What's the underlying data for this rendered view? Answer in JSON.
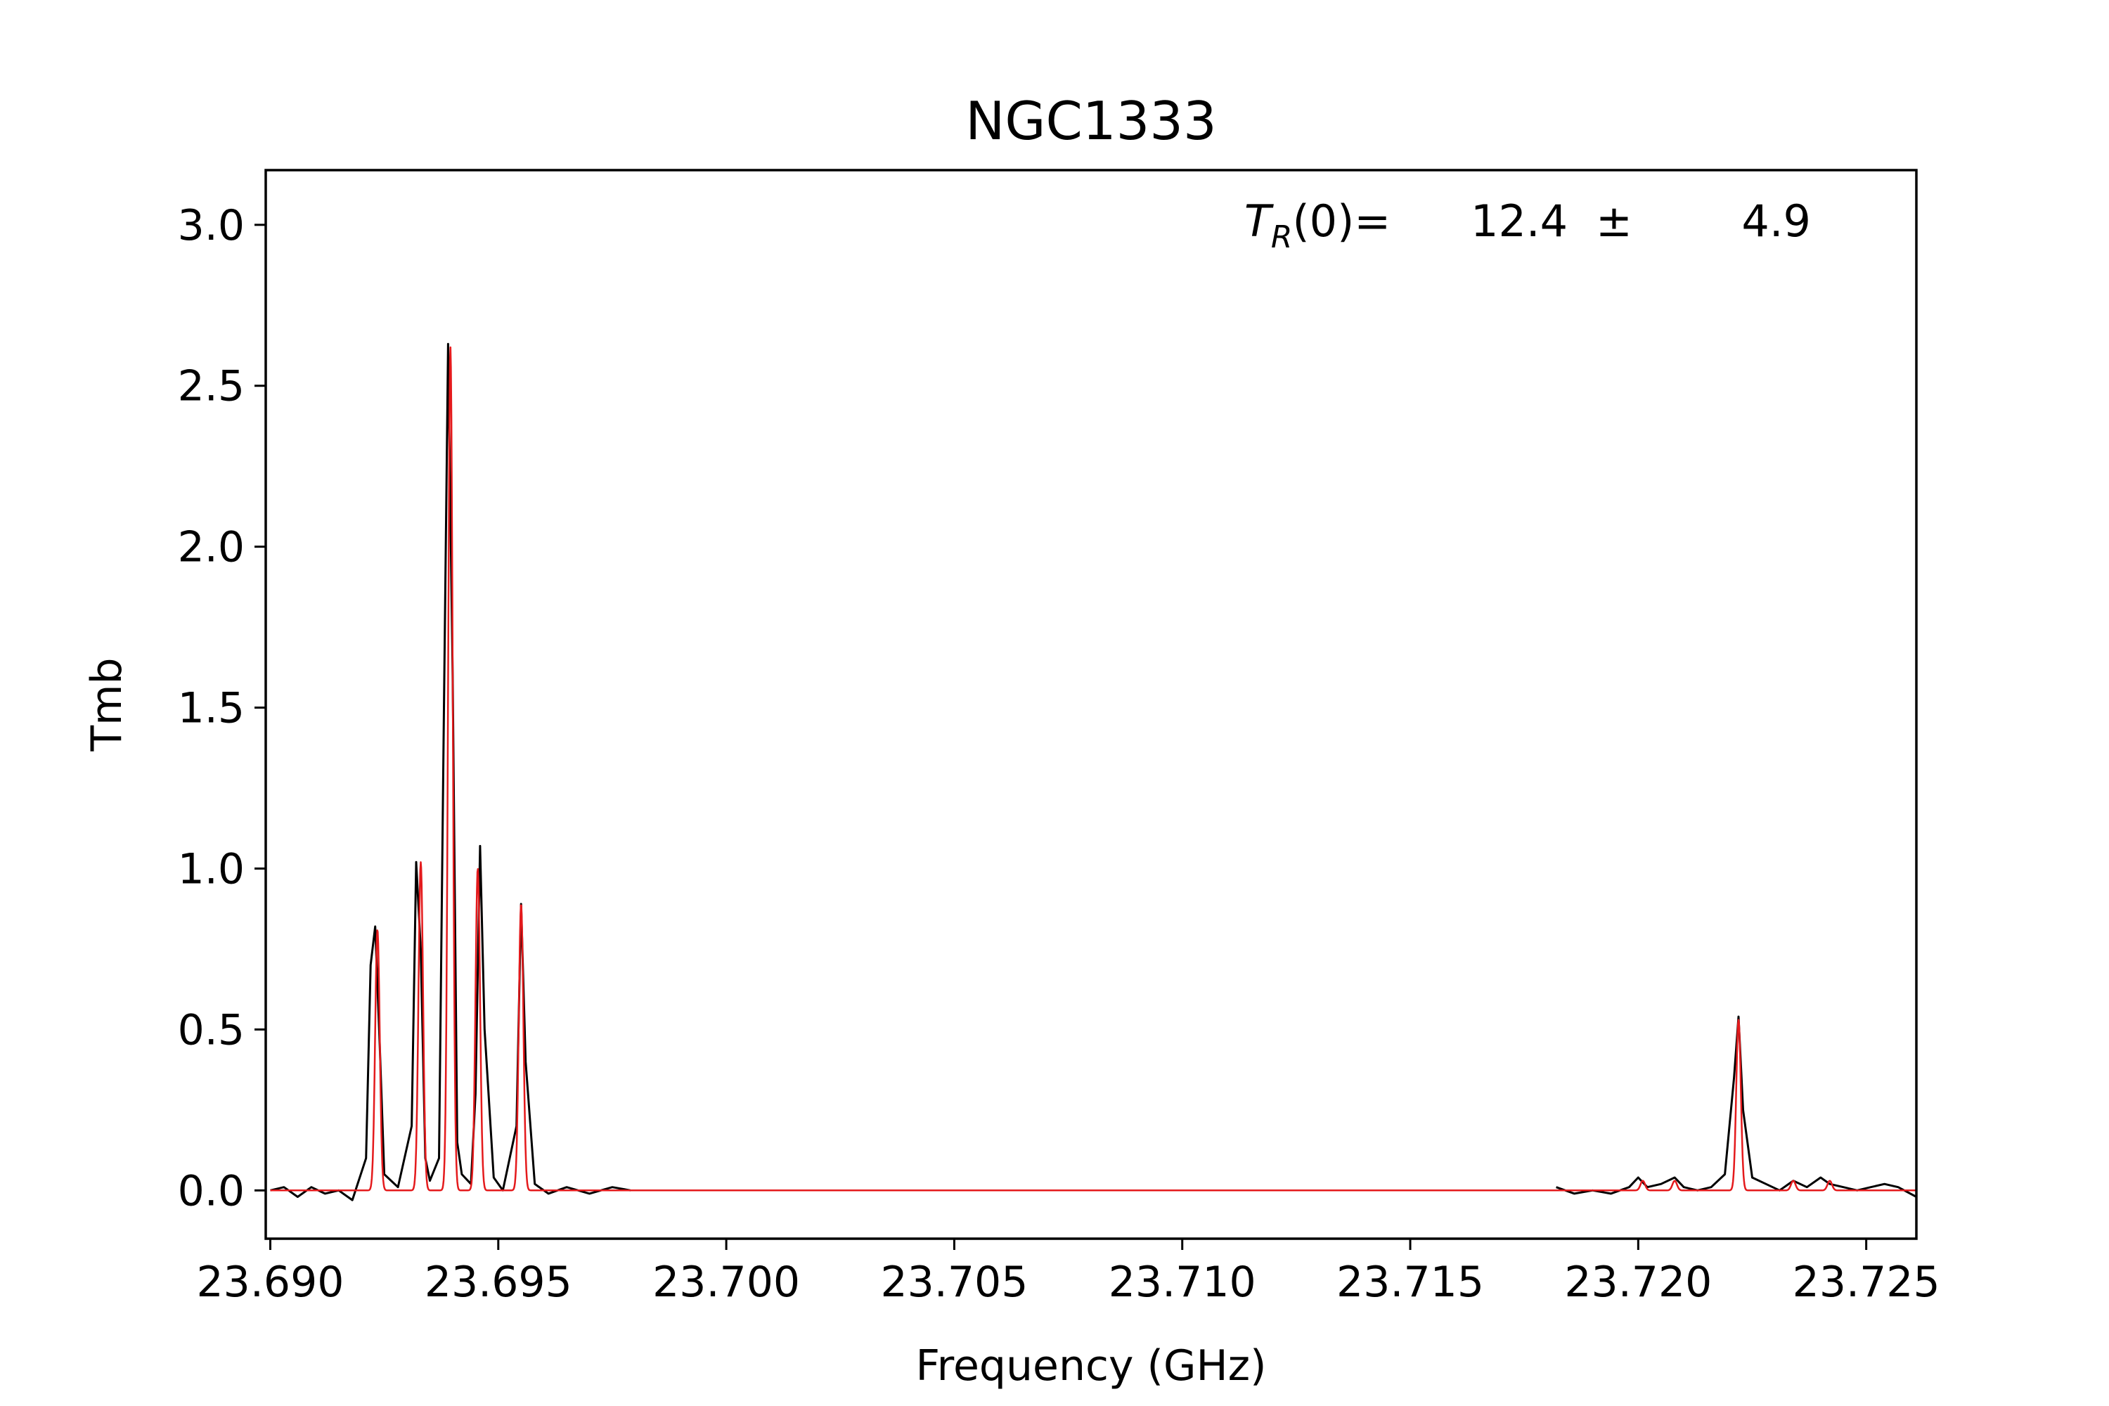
{
  "chart_data": {
    "type": "line",
    "title": "NGC1333",
    "xlabel": "Frequency (GHz)",
    "ylabel": "Tmb",
    "xlim": [
      23.6899,
      23.7261
    ],
    "ylim": [
      -0.15,
      3.17
    ],
    "x_ticks": [
      {
        "value": 23.69,
        "label": "23.690"
      },
      {
        "value": 23.695,
        "label": "23.695"
      },
      {
        "value": 23.7,
        "label": "23.700"
      },
      {
        "value": 23.705,
        "label": "23.705"
      },
      {
        "value": 23.71,
        "label": "23.710"
      },
      {
        "value": 23.715,
        "label": "23.715"
      },
      {
        "value": 23.72,
        "label": "23.720"
      },
      {
        "value": 23.725,
        "label": "23.725"
      }
    ],
    "y_ticks": [
      {
        "value": 0.0,
        "label": "0.0"
      },
      {
        "value": 0.5,
        "label": "0.5"
      },
      {
        "value": 1.0,
        "label": "1.0"
      },
      {
        "value": 1.5,
        "label": "1.5"
      },
      {
        "value": 2.0,
        "label": "2.0"
      },
      {
        "value": 2.5,
        "label": "2.5"
      },
      {
        "value": 3.0,
        "label": "3.0"
      }
    ],
    "grid": false,
    "annotation": {
      "symbol": "T",
      "subscript": "R",
      "rest": "(0)=",
      "value": "12.4",
      "pm": "±",
      "error": "4.9"
    },
    "series": [
      {
        "color": "#000000",
        "style": "observed spectrum",
        "segments": [
          {
            "x": [
              23.69,
              23.6903,
              23.6906,
              23.6909,
              23.6912,
              23.6915,
              23.6918,
              23.6921,
              23.6922,
              23.6923,
              23.6924,
              23.6925,
              23.6928,
              23.6931,
              23.6932,
              23.6933,
              23.6934,
              23.6935,
              23.6937,
              23.6938,
              23.6939,
              23.694,
              23.6941,
              23.6942,
              23.6944,
              23.6945,
              23.6946,
              23.6947,
              23.6949,
              23.6951,
              23.6954,
              23.6955,
              23.6956,
              23.6958,
              23.6961,
              23.6965,
              23.697,
              23.6975,
              23.6979
            ],
            "y": [
              0.0,
              0.01,
              -0.02,
              0.01,
              -0.01,
              0.0,
              -0.03,
              0.1,
              0.7,
              0.82,
              0.45,
              0.05,
              0.01,
              0.2,
              1.02,
              0.75,
              0.1,
              0.03,
              0.1,
              1.4,
              2.63,
              1.6,
              0.15,
              0.05,
              0.02,
              0.3,
              1.07,
              0.5,
              0.04,
              0.0,
              0.2,
              0.89,
              0.4,
              0.02,
              -0.01,
              0.01,
              -0.01,
              0.01,
              0.0
            ]
          },
          {
            "x": [
              23.7182,
              23.7186,
              23.719,
              23.7194,
              23.7198,
              23.72,
              23.7202,
              23.7205,
              23.7208,
              23.721,
              23.7213,
              23.7216,
              23.7219,
              23.7221,
              23.7222,
              23.7223,
              23.7225,
              23.7228,
              23.7231,
              23.7234,
              23.7237,
              23.724,
              23.7242,
              23.7245,
              23.7248,
              23.7251,
              23.7254,
              23.7257,
              23.7261
            ],
            "y": [
              0.01,
              -0.01,
              0.0,
              -0.01,
              0.01,
              0.04,
              0.01,
              0.02,
              0.04,
              0.01,
              0.0,
              0.01,
              0.05,
              0.35,
              0.54,
              0.25,
              0.04,
              0.02,
              0.0,
              0.03,
              0.01,
              0.04,
              0.02,
              0.01,
              0.0,
              0.01,
              0.02,
              0.01,
              -0.02
            ]
          }
        ]
      },
      {
        "color": "#e41a1c",
        "style": "fit",
        "baseline": 0,
        "x_range": [
          23.69,
          23.7261
        ],
        "peaks": [
          {
            "center": 23.69235,
            "amplitude": 0.81,
            "sigma": 5e-05
          },
          {
            "center": 23.6933,
            "amplitude": 1.02,
            "sigma": 5e-05
          },
          {
            "center": 23.69395,
            "amplitude": 2.62,
            "sigma": 5e-05
          },
          {
            "center": 23.69455,
            "amplitude": 1.0,
            "sigma": 5e-05
          },
          {
            "center": 23.6955,
            "amplitude": 0.89,
            "sigma": 5e-05
          },
          {
            "center": 23.7201,
            "amplitude": 0.03,
            "sigma": 5e-05
          },
          {
            "center": 23.7208,
            "amplitude": 0.03,
            "sigma": 5e-05
          },
          {
            "center": 23.7222,
            "amplitude": 0.53,
            "sigma": 5e-05
          },
          {
            "center": 23.7234,
            "amplitude": 0.03,
            "sigma": 5e-05
          },
          {
            "center": 23.7242,
            "amplitude": 0.03,
            "sigma": 5e-05
          }
        ]
      }
    ]
  }
}
